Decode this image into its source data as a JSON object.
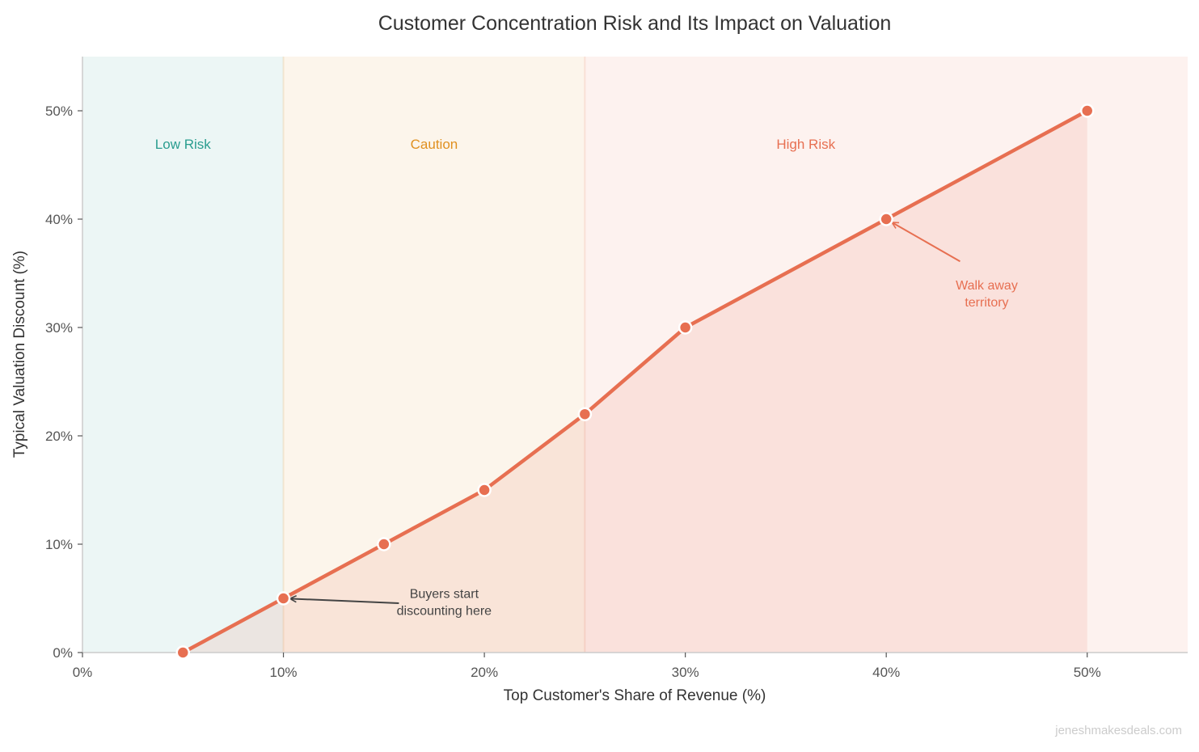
{
  "chart_data": {
    "type": "line",
    "title": "Customer Concentration Risk and Its Impact on Valuation",
    "xlabel": "Top Customer's Share of Revenue (%)",
    "ylabel": "Typical Valuation Discount (%)",
    "xlim": [
      0,
      55
    ],
    "ylim": [
      0,
      55
    ],
    "xticks": [
      0,
      10,
      20,
      30,
      40,
      50
    ],
    "yticks": [
      0,
      10,
      20,
      30,
      40,
      50
    ],
    "xtick_labels": [
      "0%",
      "10%",
      "20%",
      "30%",
      "40%",
      "50%"
    ],
    "ytick_labels": [
      "0%",
      "10%",
      "20%",
      "30%",
      "40%",
      "50%"
    ],
    "grid": false,
    "series": [
      {
        "x": [
          5,
          10,
          15,
          20,
          25,
          30,
          40,
          50
        ],
        "y": [
          0,
          5,
          10,
          15,
          22,
          30,
          40,
          50
        ],
        "color": "#e76f51",
        "filled": true
      }
    ],
    "zones": [
      {
        "label": "Low Risk",
        "from": 0,
        "to": 10,
        "color": "#2a9d8f"
      },
      {
        "label": "Caution",
        "from": 10,
        "to": 25,
        "color": "#e09020"
      },
      {
        "label": "High Risk",
        "from": 25,
        "to": 55,
        "color": "#e76f51"
      }
    ],
    "annotations": [
      {
        "text": [
          "Buyers start",
          "discounting here"
        ],
        "point": [
          10,
          5
        ],
        "text_at": [
          18,
          4.2
        ],
        "color": "#444444"
      },
      {
        "text": [
          "Walk away",
          "territory"
        ],
        "point": [
          40,
          40
        ],
        "text_at": [
          45,
          33.5
        ],
        "color": "#e76f51"
      }
    ]
  },
  "watermark": "jeneshmakesdeals.com"
}
